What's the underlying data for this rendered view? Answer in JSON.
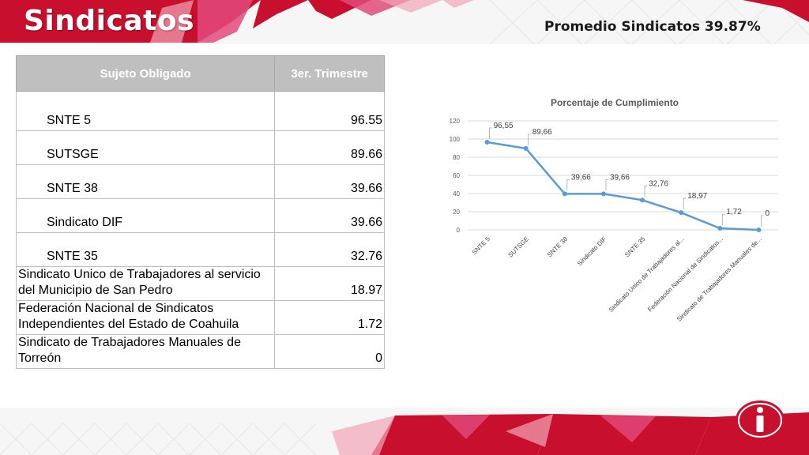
{
  "slide": {
    "title": "Sindicatos",
    "summary": "Promedio  Sindicatos 39.87%"
  },
  "table": {
    "headers": [
      "Sujeto Obligado",
      "3er. Trimestre"
    ],
    "rows": [
      {
        "name": "SNTE 5",
        "value": "96.55"
      },
      {
        "name": "SUTSGE",
        "value": "89.66"
      },
      {
        "name": "SNTE 38",
        "value": "39.66"
      },
      {
        "name": "Sindicato DIF",
        "value": "39.66"
      },
      {
        "name": "SNTE 35",
        "value": "32.76"
      },
      {
        "name": "Sindicato Unico de Trabajadores al servicio del Municipio de San Pedro",
        "value": "18.97"
      },
      {
        "name": "Federación Nacional de Sindicatos Independientes del Estado de Coahuila",
        "value": "1.72"
      },
      {
        "name": "Sindicato de Trabajadores Manuales de Torreón",
        "value": "0"
      }
    ]
  },
  "chart_data": {
    "type": "line",
    "title": "Porcentaje de Cumplimiento",
    "categories": [
      "SNTE 5",
      "SUTSGE",
      "SNTE 38",
      "Sindicato DIF",
      "SNTE 35",
      "Sindicato Unico de Trabajadores al...",
      "Federación Nacional de Sindicatos...",
      "Sindicato de Trabajadores Manuales de..."
    ],
    "series": [
      {
        "values": [
          96.55,
          89.66,
          39.66,
          39.66,
          32.76,
          18.97,
          1.72,
          0
        ]
      }
    ],
    "data_labels": [
      "96,55",
      "89,66",
      "39,66",
      "39,66",
      "32,76",
      "18,97",
      "1,72",
      "0"
    ],
    "ylim": [
      0,
      120
    ],
    "yticks": [
      0,
      20,
      40,
      60,
      80,
      100,
      120
    ],
    "grid": true,
    "legend": "none",
    "line_color": "#5b9bd5"
  },
  "colors": {
    "brand_red": "#c8102e",
    "brand_magenta": "#b5124f"
  },
  "icons": {
    "logo": "info-icon"
  }
}
